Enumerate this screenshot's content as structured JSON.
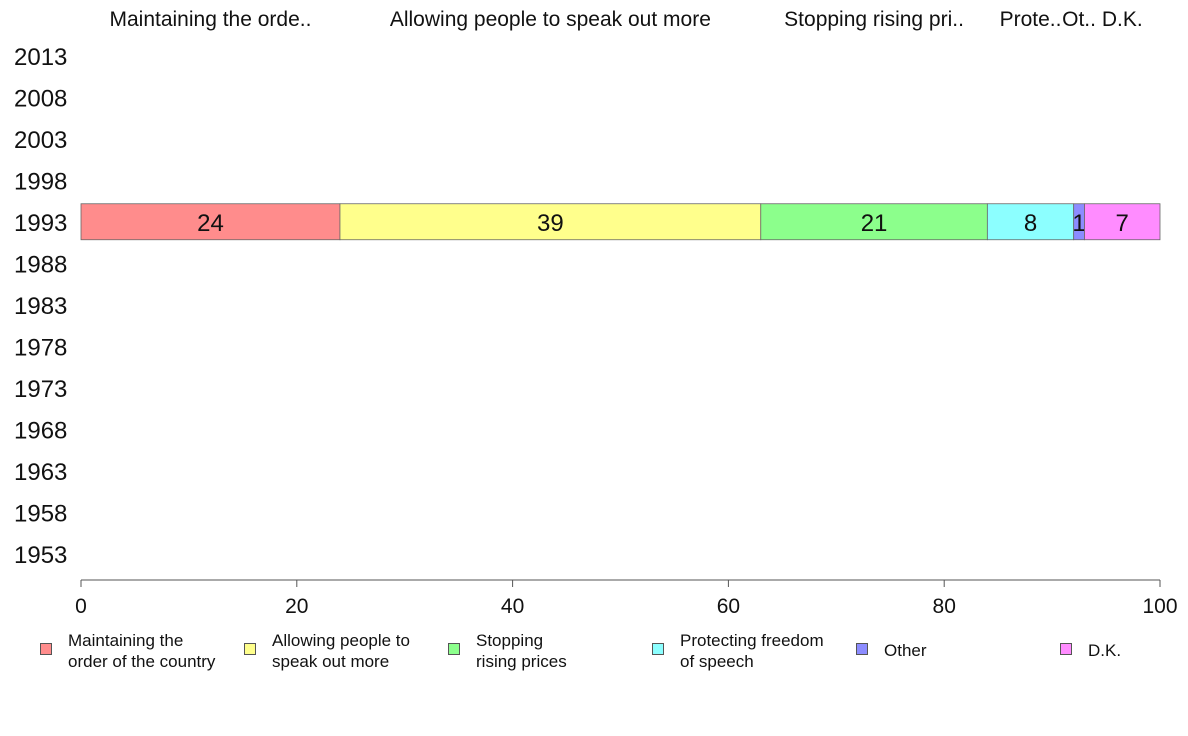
{
  "chart_data": {
    "type": "bar",
    "orientation": "horizontal",
    "stacked": true,
    "categories": [
      "2013",
      "2008",
      "2003",
      "1998",
      "1993",
      "1988",
      "1983",
      "1978",
      "1973",
      "1968",
      "1963",
      "1958",
      "1953"
    ],
    "series": [
      {
        "name": "Maintaining the order of the country",
        "header": "Maintaining the orde..",
        "color": "#FF8C8C",
        "values": [
          null,
          null,
          null,
          null,
          24,
          null,
          null,
          null,
          null,
          null,
          null,
          null,
          null
        ]
      },
      {
        "name": "Allowing people to speak out more",
        "header": "Allowing people to speak out more",
        "color": "#FFFF8C",
        "values": [
          null,
          null,
          null,
          null,
          39,
          null,
          null,
          null,
          null,
          null,
          null,
          null,
          null
        ]
      },
      {
        "name": "Stopping rising prices",
        "header": "Stopping rising pri..",
        "color": "#8CFF8C",
        "values": [
          null,
          null,
          null,
          null,
          21,
          null,
          null,
          null,
          null,
          null,
          null,
          null,
          null
        ]
      },
      {
        "name": "Protecting freedom of speech",
        "header": "Prote..",
        "color": "#8CFFFF",
        "values": [
          null,
          null,
          null,
          null,
          8,
          null,
          null,
          null,
          null,
          null,
          null,
          null,
          null
        ]
      },
      {
        "name": "Other",
        "header": "Ot..",
        "color": "#8C8CFF",
        "values": [
          null,
          null,
          null,
          null,
          1,
          null,
          null,
          null,
          null,
          null,
          null,
          null,
          null
        ]
      },
      {
        "name": "D.K.",
        "header": "D.K.",
        "color": "#FF8CFF",
        "values": [
          null,
          null,
          null,
          null,
          7,
          null,
          null,
          null,
          null,
          null,
          null,
          null,
          null
        ]
      }
    ],
    "legend_labels": [
      "Maintaining the\norder of the country",
      "Allowing people to\nspeak out more",
      "Stopping\nrising prices",
      "Protecting freedom\nof speech",
      "Other",
      "D.K."
    ],
    "xlim": [
      0,
      100
    ],
    "xticks": [
      0,
      20,
      40,
      60,
      80,
      100
    ],
    "header_row": "1993",
    "grid": false,
    "legend_position": "bottom"
  }
}
